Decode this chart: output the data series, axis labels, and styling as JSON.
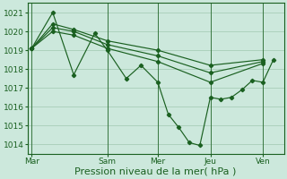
{
  "background_color": "#cce8dc",
  "line_color": "#1a6020",
  "grid_color": "#a8cdb8",
  "xlabel": "Pression niveau de la mer( hPa )",
  "ylim": [
    1013.5,
    1021.5
  ],
  "yticks": [
    1014,
    1015,
    1016,
    1017,
    1018,
    1019,
    1020,
    1021
  ],
  "xtick_labels": [
    "Mar",
    "Sam",
    "Mer",
    "Jeu",
    "Ven"
  ],
  "xtick_positions": [
    0,
    36,
    60,
    85,
    110
  ],
  "xlim": [
    -2,
    120
  ],
  "series": [
    {
      "x": [
        0,
        10,
        20,
        30,
        36,
        45,
        52,
        60,
        65,
        70,
        75,
        80,
        85,
        90,
        95,
        100,
        105,
        110,
        115
      ],
      "y": [
        1019.1,
        1021.0,
        1017.7,
        1019.9,
        1019.0,
        1017.5,
        1018.2,
        1017.3,
        1015.6,
        1014.9,
        1014.1,
        1013.95,
        1016.5,
        1016.4,
        1016.5,
        1016.9,
        1017.4,
        1017.3,
        1018.5
      ]
    },
    {
      "x": [
        0,
        10,
        20,
        36,
        60,
        85,
        110
      ],
      "y": [
        1019.1,
        1020.4,
        1020.1,
        1019.5,
        1019.0,
        1018.2,
        1018.5
      ]
    },
    {
      "x": [
        0,
        10,
        20,
        36,
        60,
        85,
        110
      ],
      "y": [
        1019.1,
        1020.2,
        1020.0,
        1019.3,
        1018.7,
        1017.8,
        1018.4
      ]
    },
    {
      "x": [
        0,
        10,
        20,
        36,
        60,
        85,
        110
      ],
      "y": [
        1019.1,
        1020.0,
        1019.8,
        1019.1,
        1018.4,
        1017.3,
        1018.3
      ]
    }
  ],
  "vlines_x": [
    0,
    36,
    60,
    85,
    110
  ],
  "xlabel_fontsize": 8,
  "tick_fontsize": 6.5
}
